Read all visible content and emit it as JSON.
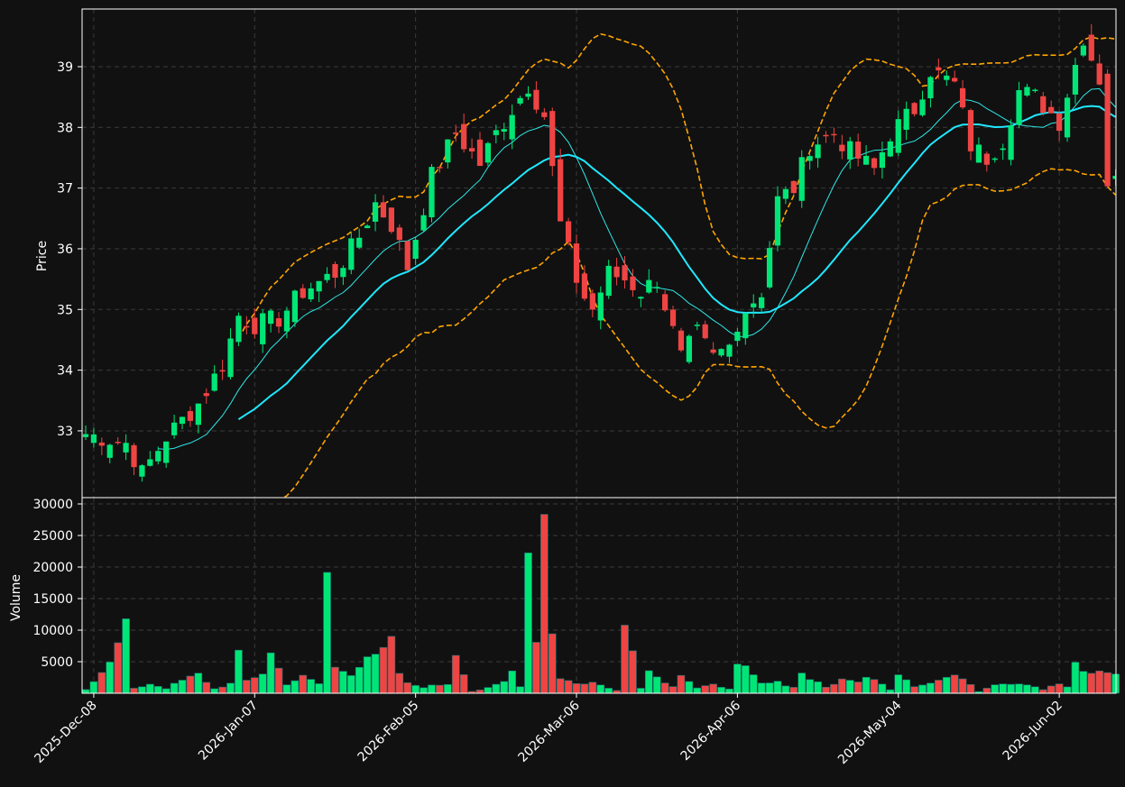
{
  "colors": {
    "background": "#111111",
    "up": "#00e676",
    "down": "#ef4444",
    "ma_fast": "#2ee6e6",
    "ma_slow": "#1fe8ff",
    "bands": "#ffa500",
    "grid": "#3a3a3a",
    "text": "#ffffff"
  },
  "chart_data": {
    "type": "candlestick",
    "price_panel": {
      "ylabel": "Price",
      "ylim": [
        31.9,
        39.95
      ],
      "yticks": [
        33,
        34,
        35,
        36,
        37,
        38,
        39
      ]
    },
    "volume_panel": {
      "ylabel": "Volume",
      "ylim": [
        0,
        31000
      ],
      "yticks": [
        5000,
        10000,
        15000,
        20000,
        25000,
        30000
      ]
    },
    "x_ticks": [
      {
        "index": 1,
        "label": "2025-Dec-08"
      },
      {
        "index": 21,
        "label": "2026-Jan-07"
      },
      {
        "index": 41,
        "label": "2026-Feb-05"
      },
      {
        "index": 61,
        "label": "2026-Mar-06"
      },
      {
        "index": 81,
        "label": "2026-Apr-06"
      },
      {
        "index": 101,
        "label": "2026-May-04"
      },
      {
        "index": 121,
        "label": "2026-Jun-02"
      }
    ],
    "series_anchors": {
      "close": [
        [
          0,
          32.95
        ],
        [
          5,
          32.8
        ],
        [
          7,
          32.3
        ],
        [
          10,
          32.9
        ],
        [
          14,
          33.45
        ],
        [
          17,
          34.1
        ],
        [
          19,
          34.9
        ],
        [
          21,
          34.75
        ],
        [
          24,
          34.85
        ],
        [
          27,
          35.3
        ],
        [
          31,
          35.6
        ],
        [
          34,
          36.2
        ],
        [
          36,
          36.75
        ],
        [
          38,
          36.4
        ],
        [
          40,
          35.7
        ],
        [
          43,
          37.2
        ],
        [
          46,
          37.9
        ],
        [
          49,
          37.4
        ],
        [
          51,
          37.9
        ],
        [
          53,
          38.3
        ],
        [
          55,
          38.7
        ],
        [
          57,
          38.2
        ],
        [
          59,
          36.4
        ],
        [
          61,
          35.5
        ],
        [
          62,
          35.2
        ],
        [
          63,
          35.0
        ],
        [
          65,
          35.6
        ],
        [
          67,
          35.5
        ],
        [
          69,
          35.3
        ],
        [
          71,
          35.5
        ],
        [
          74,
          34.2
        ],
        [
          76,
          34.6
        ],
        [
          78,
          34.2
        ],
        [
          80,
          34.4
        ],
        [
          81,
          34.8
        ],
        [
          82,
          35.0
        ],
        [
          84,
          35.3
        ],
        [
          86,
          36.8
        ],
        [
          88,
          37.0
        ],
        [
          90,
          37.7
        ],
        [
          93,
          37.9
        ],
        [
          95,
          37.6
        ],
        [
          98,
          37.3
        ],
        [
          100,
          37.9
        ],
        [
          103,
          38.3
        ],
        [
          105,
          38.95
        ],
        [
          108,
          38.7
        ],
        [
          110,
          37.7
        ],
        [
          112,
          37.5
        ],
        [
          114,
          37.8
        ],
        [
          116,
          38.6
        ],
        [
          118,
          38.5
        ],
        [
          121,
          38.1
        ],
        [
          124,
          39.5
        ],
        [
          126,
          38.8
        ],
        [
          127,
          37.1
        ]
      ],
      "volume": [
        [
          0,
          600
        ],
        [
          2,
          3600
        ],
        [
          4,
          7500
        ],
        [
          5,
          11500
        ],
        [
          6,
          700
        ],
        [
          8,
          1500
        ],
        [
          10,
          800
        ],
        [
          12,
          2000
        ],
        [
          14,
          3000
        ],
        [
          16,
          700
        ],
        [
          18,
          1500
        ],
        [
          19,
          6000
        ],
        [
          20,
          2000
        ],
        [
          22,
          3200
        ],
        [
          23,
          6300
        ],
        [
          25,
          1500
        ],
        [
          27,
          2600
        ],
        [
          29,
          1500
        ],
        [
          30,
          19000
        ],
        [
          31,
          4000
        ],
        [
          33,
          3200
        ],
        [
          35,
          6000
        ],
        [
          36,
          5500
        ],
        [
          38,
          8000
        ],
        [
          39,
          3200
        ],
        [
          40,
          1500
        ],
        [
          42,
          1000
        ],
        [
          45,
          1500
        ],
        [
          46,
          6500
        ],
        [
          48,
          300
        ],
        [
          50,
          800
        ],
        [
          52,
          1800
        ],
        [
          53,
          3500
        ],
        [
          54,
          1200
        ],
        [
          55,
          22500
        ],
        [
          56,
          9000
        ],
        [
          57,
          28500
        ],
        [
          58,
          10000
        ],
        [
          59,
          2500
        ],
        [
          61,
          1500
        ],
        [
          63,
          1700
        ],
        [
          65,
          800
        ],
        [
          66,
          500
        ],
        [
          67,
          12700
        ],
        [
          69,
          800
        ],
        [
          70,
          4200
        ],
        [
          71,
          2500
        ],
        [
          73,
          1200
        ],
        [
          74,
          3000
        ],
        [
          76,
          800
        ],
        [
          78,
          1300
        ],
        [
          80,
          800
        ],
        [
          81,
          4200
        ],
        [
          82,
          3800
        ],
        [
          84,
          1500
        ],
        [
          86,
          1700
        ],
        [
          88,
          1000
        ],
        [
          89,
          3100
        ],
        [
          90,
          2500
        ],
        [
          92,
          1000
        ],
        [
          94,
          2000
        ],
        [
          96,
          2000
        ],
        [
          97,
          2400
        ],
        [
          99,
          1700
        ],
        [
          100,
          600
        ],
        [
          101,
          3300
        ],
        [
          103,
          1200
        ],
        [
          105,
          1600
        ],
        [
          107,
          2500
        ],
        [
          109,
          2600
        ],
        [
          111,
          300
        ],
        [
          113,
          1500
        ],
        [
          115,
          1600
        ],
        [
          117,
          1500
        ],
        [
          119,
          600
        ],
        [
          121,
          1500
        ],
        [
          122,
          1000
        ],
        [
          123,
          4400
        ],
        [
          124,
          3300
        ]
      ]
    }
  }
}
